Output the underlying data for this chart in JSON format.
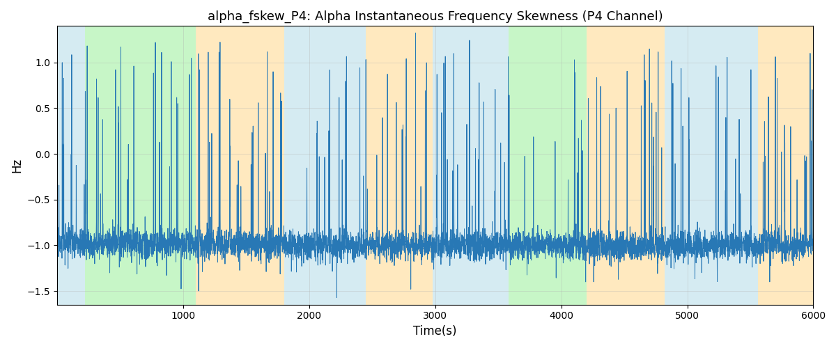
{
  "title": "alpha_fskew_P4: Alpha Instantaneous Frequency Skewness (P4 Channel)",
  "xlabel": "Time(s)",
  "ylabel": "Hz",
  "xlim": [
    0,
    6000
  ],
  "ylim": [
    -1.65,
    1.4
  ],
  "line_color": "#2878b5",
  "line_width": 0.7,
  "grid": true,
  "grid_color": "#b0b0b0",
  "grid_alpha": 0.5,
  "background_bands": [
    {
      "xstart": 0,
      "xend": 220,
      "color": "#add8e6",
      "alpha": 0.5
    },
    {
      "xstart": 220,
      "xend": 1100,
      "color": "#90ee90",
      "alpha": 0.5
    },
    {
      "xstart": 1100,
      "xend": 1800,
      "color": "#ffd580",
      "alpha": 0.5
    },
    {
      "xstart": 1800,
      "xend": 2450,
      "color": "#add8e6",
      "alpha": 0.5
    },
    {
      "xstart": 2450,
      "xend": 2980,
      "color": "#ffd580",
      "alpha": 0.5
    },
    {
      "xstart": 2980,
      "xend": 3430,
      "color": "#add8e6",
      "alpha": 0.5
    },
    {
      "xstart": 3430,
      "xend": 3580,
      "color": "#add8e6",
      "alpha": 0.5
    },
    {
      "xstart": 3580,
      "xend": 4200,
      "color": "#90ee90",
      "alpha": 0.5
    },
    {
      "xstart": 4200,
      "xend": 4820,
      "color": "#ffd580",
      "alpha": 0.5
    },
    {
      "xstart": 4820,
      "xend": 5560,
      "color": "#add8e6",
      "alpha": 0.5
    },
    {
      "xstart": 5560,
      "xend": 6000,
      "color": "#ffd580",
      "alpha": 0.5
    }
  ],
  "seed": 17,
  "n_points": 6000,
  "t_start": 0,
  "t_end": 6000,
  "title_fontsize": 13,
  "label_fontsize": 12,
  "yticks": [
    -1.5,
    -1.0,
    -0.5,
    0.0,
    0.5,
    1.0
  ],
  "xticks": [
    1000,
    2000,
    3000,
    4000,
    5000,
    6000
  ]
}
